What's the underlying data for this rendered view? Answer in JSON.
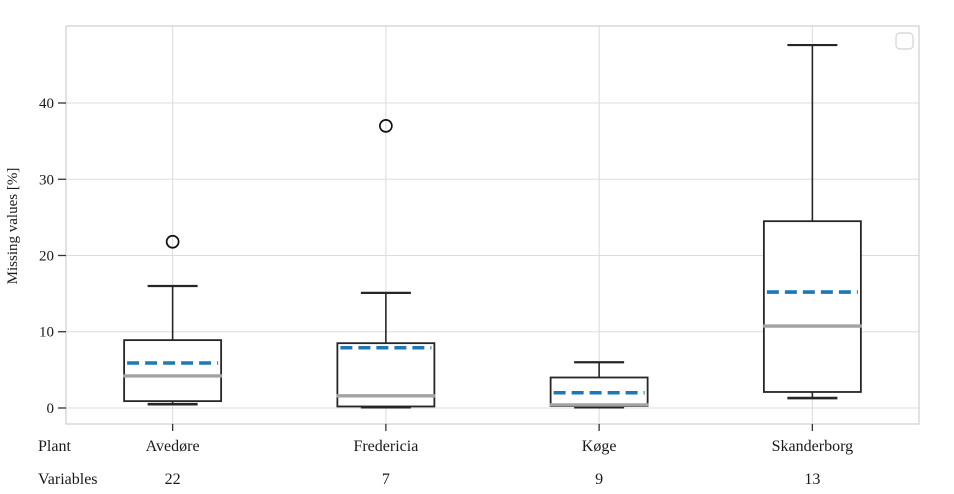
{
  "figure": {
    "kind": "boxplot-figure",
    "background": "#ffffff"
  },
  "chart_data": {
    "type": "boxplot",
    "title": "",
    "ylabel": "Missing values [%]",
    "xlabel": "",
    "yticks": [
      0,
      10,
      20,
      30,
      40
    ],
    "ylim": [
      -2.1,
      50.1
    ],
    "grid": true,
    "legend": {
      "visible": true,
      "entries": []
    },
    "row_labels": {
      "plant": "Plant",
      "variables": "Variables"
    },
    "categories": [
      {
        "plant": "Avedøre",
        "variables": "22",
        "whisker_low": 0.5,
        "q1": 0.9,
        "median": 4.2,
        "mean": 5.9,
        "q3": 8.9,
        "whisker_high": 16.0,
        "outliers": [
          21.8
        ]
      },
      {
        "plant": "Fredericia",
        "variables": "7",
        "whisker_low": 0.1,
        "q1": 0.2,
        "median": 1.6,
        "mean": 7.9,
        "q3": 8.5,
        "whisker_high": 15.1,
        "outliers": [
          37.0
        ]
      },
      {
        "plant": "Køge",
        "variables": "9",
        "whisker_low": 0.1,
        "q1": 0.25,
        "median": 0.4,
        "mean": 2.0,
        "q3": 4.0,
        "whisker_high": 6.0,
        "outliers": []
      },
      {
        "plant": "Skanderborg",
        "variables": "13",
        "whisker_low": 1.3,
        "q1": 2.1,
        "median": 10.75,
        "mean": 15.2,
        "q3": 24.5,
        "whisker_high": 47.6,
        "outliers": []
      }
    ],
    "colors": {
      "box_edge": "#262626",
      "whisker": "#262626",
      "median": "#a3a3a3",
      "mean": "#1f77b4",
      "grid": "#dddddd",
      "spine": "#cfcfcf",
      "tick": "#333333",
      "text": "#1a1a1a",
      "legend_border": "#d9d9d9",
      "background": "#ffffff"
    }
  }
}
